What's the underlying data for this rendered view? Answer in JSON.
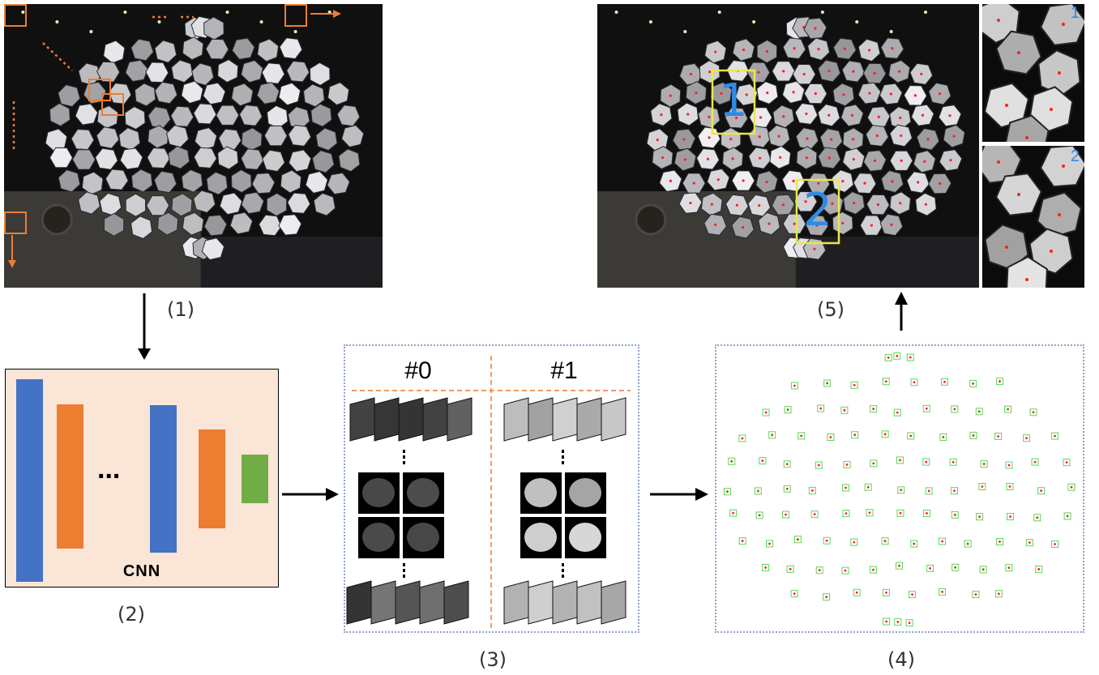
{
  "figure": {
    "steps": [
      {
        "id": "step-1",
        "label": "(1)"
      },
      {
        "id": "step-2",
        "label": "(2)"
      },
      {
        "id": "step-3",
        "label": "(3)"
      },
      {
        "id": "step-4",
        "label": "(4)"
      },
      {
        "id": "step-5",
        "label": "(5)"
      }
    ],
    "cnn": {
      "label": "CNN",
      "ellipsis": "..."
    },
    "classes": [
      {
        "label": "#0"
      },
      {
        "label": "#1"
      }
    ],
    "regions": [
      {
        "label": "1"
      },
      {
        "label": "2"
      }
    ],
    "crop_labels": [
      {
        "label": "1"
      },
      {
        "label": "2"
      }
    ]
  },
  "colors": {
    "orange": "#ed7d31",
    "blue": "#4472c4",
    "green": "#70ad47",
    "yellow_box": "#e8e84a",
    "panel_border": "#8ea3cc",
    "cnn_background": "#fbe5d6",
    "center_dot": "#ff2020",
    "detection_box": "#5cd65c"
  },
  "icons": [
    "down-arrow-icon",
    "right-arrow-icon",
    "up-arrow-icon"
  ]
}
